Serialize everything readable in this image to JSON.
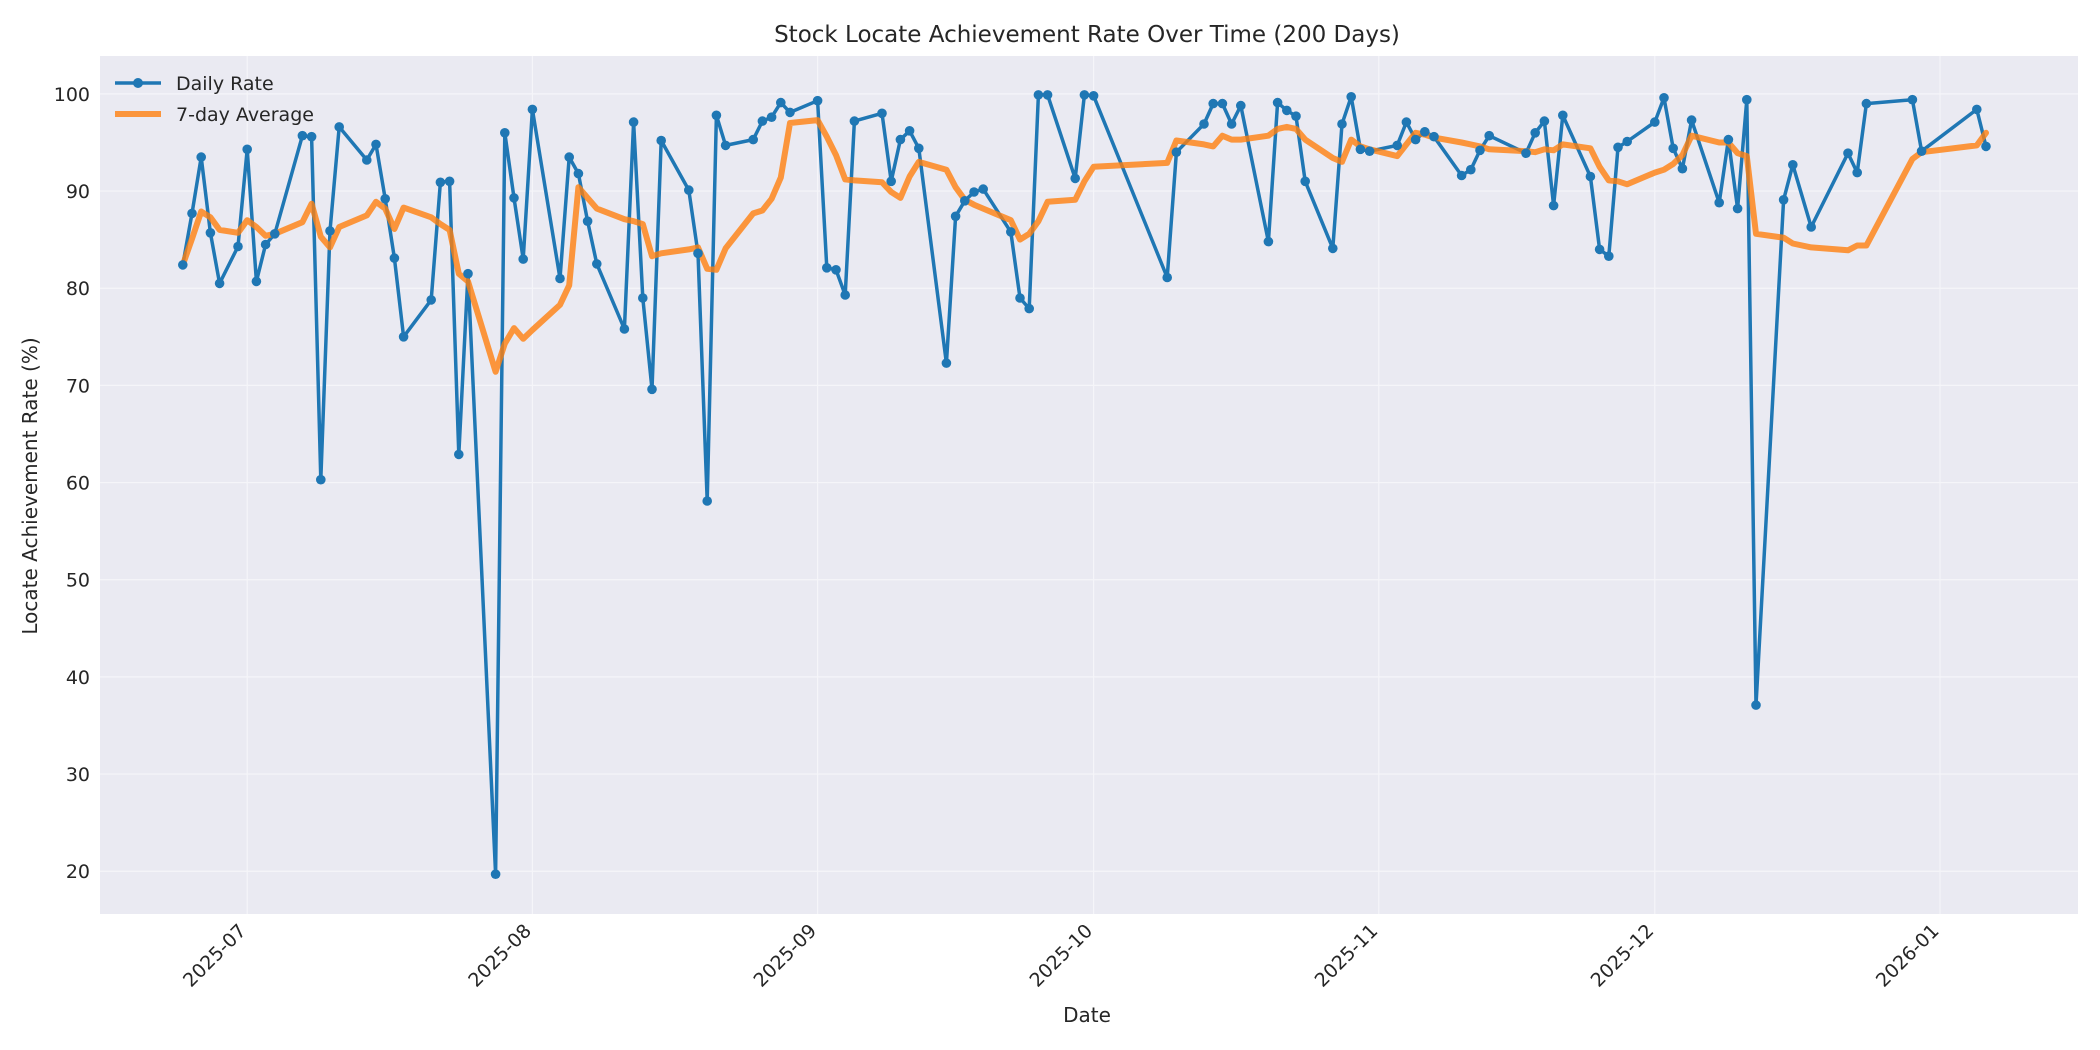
{
  "chart_data": {
    "type": "line",
    "title": "Stock Locate Achievement Rate Over Time (200 Days)",
    "xlabel": "Date",
    "ylabel": "Locate Achievement Rate (%)",
    "xlim": [
      "2025-06-15",
      "2026-01-16"
    ],
    "ylim": [
      15.6,
      103.9
    ],
    "x_ticks": [
      "2025-07-01",
      "2025-08-01",
      "2025-09-01",
      "2025-10-01",
      "2025-11-01",
      "2025-12-01",
      "2026-01-01"
    ],
    "x_tick_labels": [
      "2025-07",
      "2025-08",
      "2025-09",
      "2025-10",
      "2025-11",
      "2025-12",
      "2026-01"
    ],
    "y_ticks": [
      20,
      30,
      40,
      50,
      60,
      70,
      80,
      90,
      100
    ],
    "y_tick_labels": [
      "20",
      "30",
      "40",
      "50",
      "60",
      "70",
      "80",
      "90",
      "100"
    ],
    "grid": true,
    "legend_position": "top-left",
    "colors": {
      "plot_background": "#eaeaf2",
      "grid": "#f5f5f9",
      "daily": "#1f77b4",
      "average": "#ff7f0e"
    },
    "series": [
      {
        "name": "Daily Rate",
        "marker": "circle",
        "points": [
          [
            "2025-06-24",
            82.4
          ],
          [
            "2025-06-25",
            87.7
          ],
          [
            "2025-06-26",
            93.5
          ],
          [
            "2025-06-27",
            85.7
          ],
          [
            "2025-06-28",
            80.5
          ],
          [
            "2025-06-30",
            84.3
          ],
          [
            "2025-07-01",
            94.3
          ],
          [
            "2025-07-02",
            80.7
          ],
          [
            "2025-07-03",
            84.5
          ],
          [
            "2025-07-04",
            85.6
          ],
          [
            "2025-07-07",
            95.7
          ],
          [
            "2025-07-08",
            95.6
          ],
          [
            "2025-07-09",
            60.3
          ],
          [
            "2025-07-10",
            85.9
          ],
          [
            "2025-07-11",
            96.6
          ],
          [
            "2025-07-14",
            93.2
          ],
          [
            "2025-07-15",
            94.8
          ],
          [
            "2025-07-16",
            89.2
          ],
          [
            "2025-07-17",
            83.1
          ],
          [
            "2025-07-18",
            75.0
          ],
          [
            "2025-07-21",
            78.8
          ],
          [
            "2025-07-22",
            90.9
          ],
          [
            "2025-07-23",
            91.0
          ],
          [
            "2025-07-24",
            62.9
          ],
          [
            "2025-07-25",
            81.5
          ],
          [
            "2025-07-28",
            19.7
          ],
          [
            "2025-07-29",
            96.0
          ],
          [
            "2025-07-30",
            89.3
          ],
          [
            "2025-07-31",
            83.0
          ],
          [
            "2025-08-01",
            98.4
          ],
          [
            "2025-08-04",
            81.0
          ],
          [
            "2025-08-05",
            93.5
          ],
          [
            "2025-08-06",
            91.8
          ],
          [
            "2025-08-07",
            86.9
          ],
          [
            "2025-08-08",
            82.5
          ],
          [
            "2025-08-11",
            75.8
          ],
          [
            "2025-08-12",
            97.1
          ],
          [
            "2025-08-13",
            79.0
          ],
          [
            "2025-08-14",
            69.6
          ],
          [
            "2025-08-15",
            95.2
          ],
          [
            "2025-08-18",
            90.1
          ],
          [
            "2025-08-19",
            83.6
          ],
          [
            "2025-08-20",
            58.1
          ],
          [
            "2025-08-21",
            97.8
          ],
          [
            "2025-08-22",
            94.7
          ],
          [
            "2025-08-25",
            95.3
          ],
          [
            "2025-08-26",
            97.2
          ],
          [
            "2025-08-27",
            97.6
          ],
          [
            "2025-08-28",
            99.1
          ],
          [
            "2025-08-29",
            98.1
          ],
          [
            "2025-09-01",
            99.3
          ],
          [
            "2025-09-02",
            82.1
          ],
          [
            "2025-09-03",
            81.9
          ],
          [
            "2025-09-04",
            79.3
          ],
          [
            "2025-09-05",
            97.2
          ],
          [
            "2025-09-08",
            98.0
          ],
          [
            "2025-09-09",
            91.0
          ],
          [
            "2025-09-10",
            95.3
          ],
          [
            "2025-09-11",
            96.2
          ],
          [
            "2025-09-12",
            94.4
          ],
          [
            "2025-09-15",
            72.3
          ],
          [
            "2025-09-16",
            87.4
          ],
          [
            "2025-09-17",
            89.0
          ],
          [
            "2025-09-18",
            89.9
          ],
          [
            "2025-09-19",
            90.2
          ],
          [
            "2025-09-22",
            85.8
          ],
          [
            "2025-09-23",
            79.0
          ],
          [
            "2025-09-24",
            77.9
          ],
          [
            "2025-09-25",
            99.9
          ],
          [
            "2025-09-26",
            99.9
          ],
          [
            "2025-09-29",
            91.3
          ],
          [
            "2025-09-30",
            99.9
          ],
          [
            "2025-10-01",
            99.8
          ],
          [
            "2025-10-09",
            81.1
          ],
          [
            "2025-10-10",
            94.0
          ],
          [
            "2025-10-13",
            96.9
          ],
          [
            "2025-10-14",
            99.0
          ],
          [
            "2025-10-15",
            99.0
          ],
          [
            "2025-10-16",
            96.9
          ],
          [
            "2025-10-17",
            98.8
          ],
          [
            "2025-10-20",
            84.8
          ],
          [
            "2025-10-21",
            99.1
          ],
          [
            "2025-10-22",
            98.3
          ],
          [
            "2025-10-23",
            97.7
          ],
          [
            "2025-10-24",
            91.0
          ],
          [
            "2025-10-27",
            84.1
          ],
          [
            "2025-10-28",
            96.9
          ],
          [
            "2025-10-29",
            99.7
          ],
          [
            "2025-10-30",
            94.3
          ],
          [
            "2025-10-31",
            94.1
          ],
          [
            "2025-11-03",
            94.7
          ],
          [
            "2025-11-04",
            97.1
          ],
          [
            "2025-11-05",
            95.3
          ],
          [
            "2025-11-06",
            96.1
          ],
          [
            "2025-11-07",
            95.6
          ],
          [
            "2025-11-10",
            91.6
          ],
          [
            "2025-11-11",
            92.2
          ],
          [
            "2025-11-12",
            94.2
          ],
          [
            "2025-11-13",
            95.7
          ],
          [
            "2025-11-17",
            93.9
          ],
          [
            "2025-11-18",
            96.0
          ],
          [
            "2025-11-19",
            97.2
          ],
          [
            "2025-11-20",
            88.5
          ],
          [
            "2025-11-21",
            97.8
          ],
          [
            "2025-11-24",
            91.5
          ],
          [
            "2025-11-25",
            84.0
          ],
          [
            "2025-11-26",
            83.3
          ],
          [
            "2025-11-27",
            94.5
          ],
          [
            "2025-11-28",
            95.1
          ],
          [
            "2025-12-01",
            97.1
          ],
          [
            "2025-12-02",
            99.6
          ],
          [
            "2025-12-03",
            94.4
          ],
          [
            "2025-12-04",
            92.3
          ],
          [
            "2025-12-05",
            97.3
          ],
          [
            "2025-12-08",
            88.8
          ],
          [
            "2025-12-09",
            95.3
          ],
          [
            "2025-12-10",
            88.2
          ],
          [
            "2025-12-11",
            99.4
          ],
          [
            "2025-12-12",
            37.1
          ],
          [
            "2025-12-15",
            89.1
          ],
          [
            "2025-12-16",
            92.7
          ],
          [
            "2025-12-18",
            86.3
          ],
          [
            "2025-12-22",
            93.9
          ],
          [
            "2025-12-23",
            91.9
          ],
          [
            "2025-12-24",
            99.0
          ],
          [
            "2025-12-29",
            99.4
          ],
          [
            "2025-12-30",
            94.1
          ],
          [
            "2026-01-05",
            98.4
          ],
          [
            "2026-01-06",
            94.6
          ]
        ]
      },
      {
        "name": "7-day Average",
        "marker": "none",
        "points": [
          [
            "2025-06-24",
            82.4
          ],
          [
            "2025-06-25",
            85.1
          ],
          [
            "2025-06-26",
            87.9
          ],
          [
            "2025-06-27",
            87.3
          ],
          [
            "2025-06-28",
            86.0
          ],
          [
            "2025-06-30",
            85.7
          ],
          [
            "2025-07-01",
            87.0
          ],
          [
            "2025-07-02",
            86.3
          ],
          [
            "2025-07-03",
            85.4
          ],
          [
            "2025-07-04",
            85.6
          ],
          [
            "2025-07-07",
            86.8
          ],
          [
            "2025-07-08",
            88.7
          ],
          [
            "2025-07-09",
            85.3
          ],
          [
            "2025-07-10",
            84.2
          ],
          [
            "2025-07-11",
            86.3
          ],
          [
            "2025-07-14",
            87.5
          ],
          [
            "2025-07-15",
            88.9
          ],
          [
            "2025-07-16",
            88.2
          ],
          [
            "2025-07-17",
            86.1
          ],
          [
            "2025-07-18",
            88.3
          ],
          [
            "2025-07-21",
            87.3
          ],
          [
            "2025-07-22",
            86.6
          ],
          [
            "2025-07-23",
            86.0
          ],
          [
            "2025-07-24",
            81.5
          ],
          [
            "2025-07-25",
            80.7
          ],
          [
            "2025-07-28",
            71.4
          ],
          [
            "2025-07-29",
            74.3
          ],
          [
            "2025-07-30",
            75.9
          ],
          [
            "2025-07-31",
            74.8
          ],
          [
            "2025-08-01",
            75.7
          ],
          [
            "2025-08-04",
            78.3
          ],
          [
            "2025-08-05",
            80.3
          ],
          [
            "2025-08-06",
            90.4
          ],
          [
            "2025-08-07",
            89.3
          ],
          [
            "2025-08-08",
            88.2
          ],
          [
            "2025-08-11",
            87.1
          ],
          [
            "2025-08-12",
            86.9
          ],
          [
            "2025-08-13",
            86.6
          ],
          [
            "2025-08-14",
            83.3
          ],
          [
            "2025-08-15",
            83.6
          ],
          [
            "2025-08-18",
            84.0
          ],
          [
            "2025-08-19",
            84.2
          ],
          [
            "2025-08-20",
            82.0
          ],
          [
            "2025-08-21",
            81.9
          ],
          [
            "2025-08-22",
            84.1
          ],
          [
            "2025-08-25",
            87.7
          ],
          [
            "2025-08-26",
            88.0
          ],
          [
            "2025-08-27",
            89.2
          ],
          [
            "2025-08-28",
            91.4
          ],
          [
            "2025-08-29",
            97.0
          ],
          [
            "2025-09-01",
            97.3
          ],
          [
            "2025-09-02",
            95.6
          ],
          [
            "2025-09-03",
            93.7
          ],
          [
            "2025-09-04",
            91.2
          ],
          [
            "2025-09-05",
            91.1
          ],
          [
            "2025-09-08",
            90.9
          ],
          [
            "2025-09-09",
            89.9
          ],
          [
            "2025-09-10",
            89.3
          ],
          [
            "2025-09-11",
            91.5
          ],
          [
            "2025-09-12",
            93.0
          ],
          [
            "2025-09-15",
            92.2
          ],
          [
            "2025-09-16",
            90.4
          ],
          [
            "2025-09-17",
            89.1
          ],
          [
            "2025-09-18",
            88.6
          ],
          [
            "2025-09-19",
            88.2
          ],
          [
            "2025-09-22",
            87.0
          ],
          [
            "2025-09-23",
            85.0
          ],
          [
            "2025-09-24",
            85.6
          ],
          [
            "2025-09-25",
            86.9
          ],
          [
            "2025-09-26",
            88.9
          ],
          [
            "2025-09-29",
            89.1
          ],
          [
            "2025-09-30",
            91.0
          ],
          [
            "2025-10-01",
            92.5
          ],
          [
            "2025-10-09",
            92.9
          ],
          [
            "2025-10-10",
            95.2
          ],
          [
            "2025-10-13",
            94.8
          ],
          [
            "2025-10-14",
            94.6
          ],
          [
            "2025-10-15",
            95.7
          ],
          [
            "2025-10-16",
            95.3
          ],
          [
            "2025-10-17",
            95.3
          ],
          [
            "2025-10-20",
            95.7
          ],
          [
            "2025-10-21",
            96.4
          ],
          [
            "2025-10-22",
            96.6
          ],
          [
            "2025-10-23",
            96.4
          ],
          [
            "2025-10-24",
            95.3
          ],
          [
            "2025-10-27",
            93.4
          ],
          [
            "2025-10-28",
            93.0
          ],
          [
            "2025-10-29",
            95.3
          ],
          [
            "2025-10-30",
            94.6
          ],
          [
            "2025-10-31",
            94.3
          ],
          [
            "2025-11-03",
            93.6
          ],
          [
            "2025-11-04",
            94.8
          ],
          [
            "2025-11-05",
            96.0
          ],
          [
            "2025-11-06",
            95.8
          ],
          [
            "2025-11-07",
            95.5
          ],
          [
            "2025-11-10",
            95.0
          ],
          [
            "2025-11-11",
            94.8
          ],
          [
            "2025-11-12",
            94.6
          ],
          [
            "2025-11-13",
            94.3
          ],
          [
            "2025-11-17",
            94.1
          ],
          [
            "2025-11-18",
            94.0
          ],
          [
            "2025-11-19",
            94.3
          ],
          [
            "2025-11-20",
            94.2
          ],
          [
            "2025-11-21",
            94.8
          ],
          [
            "2025-11-24",
            94.4
          ],
          [
            "2025-11-25",
            92.5
          ],
          [
            "2025-11-26",
            91.1
          ],
          [
            "2025-11-27",
            91.0
          ],
          [
            "2025-11-28",
            90.7
          ],
          [
            "2025-12-01",
            91.9
          ],
          [
            "2025-12-02",
            92.2
          ],
          [
            "2025-12-03",
            92.8
          ],
          [
            "2025-12-04",
            93.7
          ],
          [
            "2025-12-05",
            95.7
          ],
          [
            "2025-12-08",
            95.0
          ],
          [
            "2025-12-09",
            95.0
          ],
          [
            "2025-12-10",
            93.9
          ],
          [
            "2025-12-11",
            93.6
          ],
          [
            "2025-12-12",
            85.6
          ],
          [
            "2025-12-15",
            85.2
          ],
          [
            "2025-12-16",
            84.6
          ],
          [
            "2025-12-18",
            84.2
          ],
          [
            "2025-12-22",
            83.9
          ],
          [
            "2025-12-23",
            84.4
          ],
          [
            "2025-12-24",
            84.4
          ],
          [
            "2025-12-29",
            93.3
          ],
          [
            "2025-12-30",
            94.0
          ],
          [
            "2026-01-05",
            94.7
          ],
          [
            "2026-01-06",
            96.0
          ]
        ]
      }
    ]
  }
}
